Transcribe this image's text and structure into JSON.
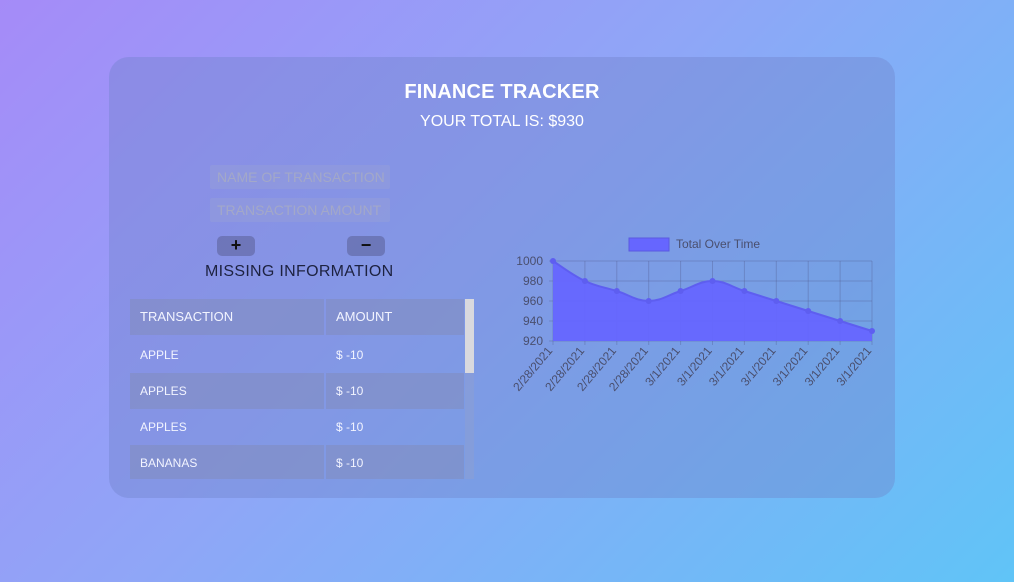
{
  "app": {
    "title": "FINANCE TRACKER",
    "total_text": "YOUR TOTAL IS: $930"
  },
  "form": {
    "name_placeholder": "NAME OF TRANSACTION",
    "amount_placeholder": "TRANSACTION AMOUNT",
    "add_label": "+",
    "subtract_label": "−",
    "error_message": "MISSING INFORMATION"
  },
  "table": {
    "headers": [
      "TRANSACTION",
      "AMOUNT"
    ],
    "rows": [
      {
        "name": "APPLE",
        "amount": "$ -10"
      },
      {
        "name": "APPLES",
        "amount": "$ -10"
      },
      {
        "name": "APPLES",
        "amount": "$ -10"
      },
      {
        "name": "BANANAS",
        "amount": "$ -10"
      }
    ]
  },
  "colors": {
    "series_fill": "#6666ff",
    "series_line": "#5e5ef0"
  },
  "chart_data": {
    "type": "area",
    "legend": "Total Over Time",
    "legend_position": "top",
    "x": [
      "2/28/2021",
      "2/28/2021",
      "2/28/2021",
      "2/28/2021",
      "3/1/2021",
      "3/1/2021",
      "3/1/2021",
      "3/1/2021",
      "3/1/2021",
      "3/1/2021",
      "3/1/2021"
    ],
    "series": [
      {
        "name": "Total Over Time",
        "values": [
          1000,
          980,
          970,
          960,
          970,
          980,
          970,
          960,
          950,
          940,
          930
        ]
      }
    ],
    "yticks": [
      1000,
      980,
      960,
      940,
      920
    ],
    "ylim": [
      920,
      1000
    ],
    "grid": true
  }
}
